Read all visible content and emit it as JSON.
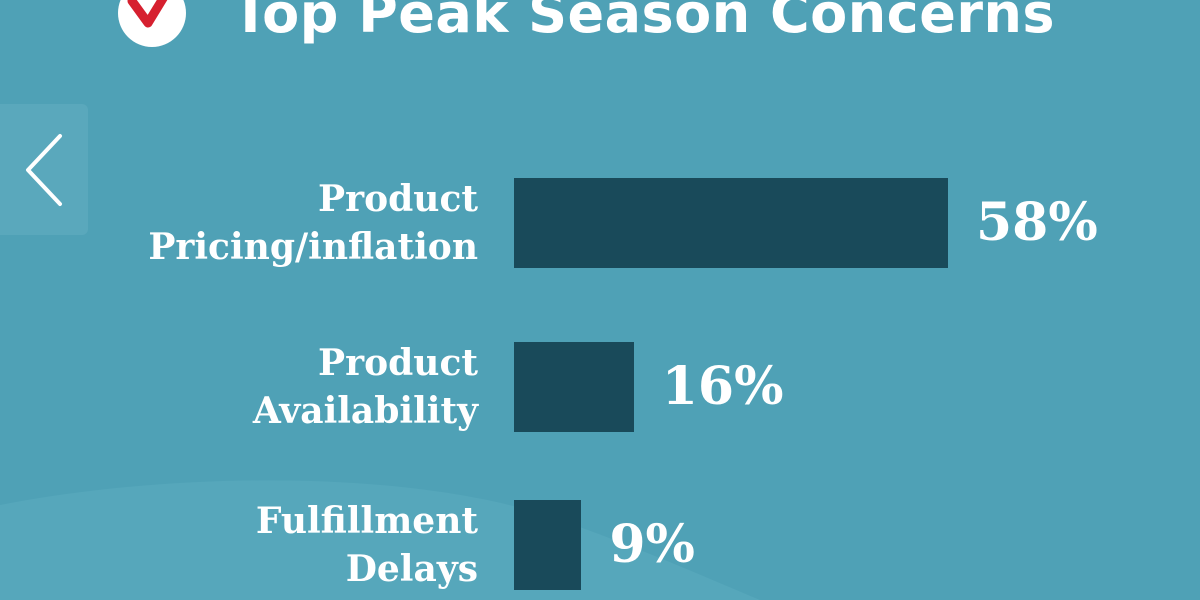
{
  "header": {
    "title": "Top Peak Season Concerns",
    "logo_icon": "checkmark-logo-icon"
  },
  "nav": {
    "prev_icon": "chevron-left-icon"
  },
  "colors": {
    "background": "#4fa1b6",
    "bar": "#194a5a",
    "text": "#ffffff",
    "logo_mark": "#d6202f"
  },
  "chart_data": {
    "type": "bar",
    "orientation": "horizontal",
    "title": "Top Peak Season Concerns",
    "categories": [
      [
        "Product",
        "Pricing/inflation"
      ],
      [
        "Product",
        "Availability"
      ],
      [
        "Fulfillment",
        "Delays"
      ]
    ],
    "values": [
      58,
      16,
      9
    ],
    "value_labels": [
      "58%",
      "16%",
      "9%"
    ],
    "unit": "%",
    "xlim": [
      0,
      100
    ],
    "grid": false,
    "legend": "none"
  }
}
